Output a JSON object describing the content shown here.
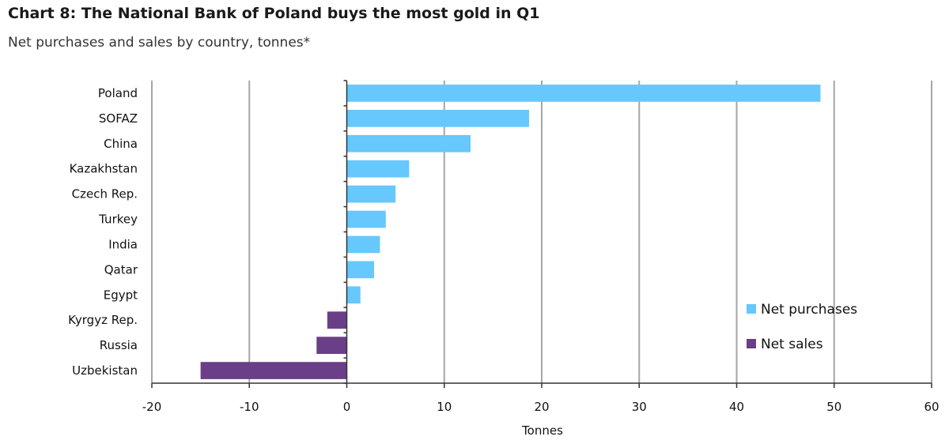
{
  "chart_data": {
    "type": "bar",
    "orientation": "horizontal",
    "title": "Chart 8: The National Bank of Poland buys the most gold in Q1",
    "subtitle": "Net purchases and sales by country, tonnes*",
    "xlabel": "Tonnes",
    "ylabel": "",
    "xlim": [
      -20,
      60
    ],
    "xticks": [
      "-20",
      "-10",
      "0",
      "10",
      "20",
      "30",
      "40",
      "50",
      "60"
    ],
    "grid": true,
    "legend_position": "lower-right",
    "categories": [
      "Poland",
      "SOFAZ",
      "China",
      "Kazakhstan",
      "Czech Rep.",
      "Turkey",
      "India",
      "Qatar",
      "Egypt",
      "Kyrgyz Rep.",
      "Russia",
      "Uzbekistan"
    ],
    "values": [
      48.6,
      18.7,
      12.7,
      6.4,
      5.0,
      4.0,
      3.4,
      2.8,
      1.4,
      -2.0,
      -3.1,
      -15.0
    ],
    "series": [
      {
        "name": "Net purchases",
        "color": "#66c8fc"
      },
      {
        "name": "Net sales",
        "color": "#6b3f87"
      }
    ]
  }
}
